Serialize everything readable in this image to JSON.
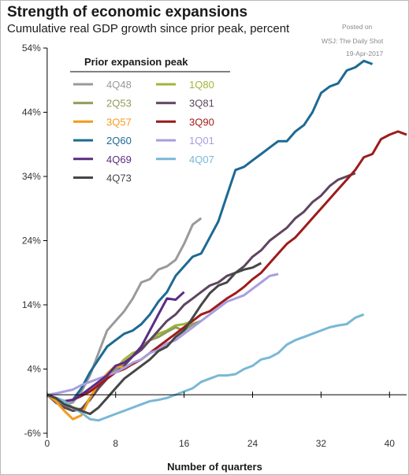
{
  "header": {
    "title": "Strength of economic expansions",
    "subtitle": "Cumulative real GDP growth since prior peak, percent"
  },
  "source": {
    "posted_label": "Posted on",
    "publisher": "WSJ: The Daily Shot",
    "date": "19-Apr-2017"
  },
  "chart_data": {
    "type": "line",
    "xlabel": "Number of quarters",
    "ylabel": "",
    "xlim": [
      -1,
      42
    ],
    "ylim": [
      -6,
      54
    ],
    "x_ticks": [
      0,
      8,
      16,
      24,
      32,
      40
    ],
    "y_ticks": [
      -6,
      4,
      14,
      24,
      34,
      44,
      54
    ],
    "y_tick_labels": [
      "-6%",
      "4%",
      "14%",
      "24%",
      "34%",
      "44%",
      "54%"
    ],
    "grid": false,
    "legend_title": "Prior expansion peak",
    "legend_position": "top-left",
    "series": [
      {
        "name": "4Q48",
        "color": "#9a9a9a",
        "x": [
          0,
          1,
          2,
          3,
          4,
          5,
          6,
          7,
          8,
          9,
          10,
          11,
          12,
          13,
          14,
          15,
          16,
          17,
          18
        ],
        "y": [
          0,
          -0.8,
          -1.5,
          -1.2,
          0.5,
          3,
          6.5,
          10,
          11.5,
          13,
          15,
          17.5,
          18,
          19.5,
          20,
          21,
          23.5,
          26.5,
          27.5
        ]
      },
      {
        "name": "1Q80",
        "color": "#9fb63a",
        "x": [
          0,
          1,
          2,
          3,
          4,
          5,
          6,
          7,
          8,
          9,
          10,
          11,
          12,
          13,
          14,
          15,
          16,
          17
        ],
        "y": [
          0,
          -0.5,
          -1,
          -2,
          -2.3,
          -0.5,
          1.5,
          3,
          4,
          5.5,
          6.5,
          7,
          8.5,
          9.5,
          10,
          10.8,
          11,
          11.5
        ]
      },
      {
        "name": "2Q53",
        "color": "#8e9c57",
        "x": [
          0,
          1,
          2,
          3,
          4,
          5,
          6,
          7,
          8,
          9,
          10,
          11,
          12,
          13,
          14,
          15,
          16,
          17,
          18
        ],
        "y": [
          0,
          -0.8,
          -1.8,
          -2.5,
          -2.3,
          -0.8,
          1,
          3,
          4,
          5,
          6,
          7.5,
          8.5,
          9,
          9.8,
          10.5,
          10,
          11,
          11.5
        ]
      },
      {
        "name": "3Q81",
        "color": "#5e4560",
        "x": [
          0,
          1,
          2,
          3,
          4,
          5,
          6,
          7,
          8,
          9,
          10,
          11,
          12,
          13,
          14,
          15,
          16,
          17,
          18,
          19,
          20,
          21,
          22,
          23,
          24,
          25,
          26,
          27,
          28,
          29,
          30,
          31,
          32,
          33,
          34,
          35,
          36
        ],
        "y": [
          0,
          -1.2,
          -2,
          -2.5,
          -2.2,
          -0.8,
          1,
          2.5,
          3.5,
          4.5,
          6,
          7,
          8.5,
          10,
          11.5,
          12.5,
          14,
          15,
          16,
          17,
          17.5,
          18.5,
          19,
          20,
          21.5,
          22.5,
          24,
          25,
          26,
          27.5,
          28.5,
          30,
          31,
          32.5,
          33.5,
          34,
          34.5
        ]
      },
      {
        "name": "3Q57",
        "color": "#f39b1f",
        "x": [
          0,
          1,
          2,
          3,
          4,
          5,
          6,
          7,
          8,
          9
        ],
        "y": [
          0,
          -1,
          -2.5,
          -3.8,
          -3.2,
          -0.5,
          1.8,
          3.3,
          4.5,
          4.2
        ]
      },
      {
        "name": "3Q90",
        "color": "#9e1b1b",
        "x": [
          0,
          1,
          2,
          3,
          4,
          5,
          6,
          7,
          8,
          9,
          10,
          11,
          12,
          13,
          14,
          15,
          16,
          17,
          18,
          19,
          20,
          21,
          22,
          23,
          24,
          25,
          26,
          27,
          28,
          29,
          30,
          31,
          32,
          33,
          34,
          35,
          36,
          37,
          38,
          39,
          40,
          41,
          42
        ],
        "y": [
          0,
          -0.5,
          -1,
          -0.8,
          -0.2,
          0.5,
          1.5,
          2.5,
          3.5,
          4,
          4.8,
          5.5,
          6.5,
          7.5,
          8.5,
          9.5,
          10.5,
          11.5,
          12.5,
          13,
          14,
          15,
          15.8,
          16.8,
          18,
          19,
          20.5,
          22,
          23.5,
          24.5,
          26,
          27.5,
          29,
          30.5,
          32,
          33.5,
          35,
          37,
          37.5,
          39.8,
          40.5,
          41,
          40.5
        ]
      },
      {
        "name": "2Q60",
        "color": "#1d6a93",
        "x": [
          0,
          1,
          2,
          3,
          4,
          5,
          6,
          7,
          8,
          9,
          10,
          11,
          12,
          13,
          14,
          15,
          16,
          17,
          18,
          19,
          20,
          21,
          22,
          23,
          24,
          25,
          26,
          27,
          28,
          29,
          30,
          31,
          32,
          33,
          34,
          35,
          36,
          37,
          38
        ],
        "y": [
          0,
          -0.5,
          -1,
          -0.8,
          1,
          3.5,
          5.5,
          7.5,
          8.5,
          9.5,
          10,
          11,
          12.5,
          14.5,
          16,
          18.5,
          20,
          21.5,
          22,
          24.5,
          27,
          31,
          35,
          35.5,
          36.5,
          37.5,
          38.5,
          39.5,
          39.5,
          41,
          42,
          44,
          47,
          48,
          48.5,
          50.5,
          51,
          52,
          51.5
        ]
      },
      {
        "name": "1Q01",
        "color": "#a89ee0",
        "x": [
          0,
          1,
          2,
          3,
          4,
          5,
          6,
          7,
          8,
          9,
          10,
          11,
          12,
          13,
          14,
          15,
          16,
          17,
          18,
          19,
          20,
          21,
          22,
          23,
          24,
          25,
          26,
          27
        ],
        "y": [
          0,
          0.2,
          0.5,
          0.8,
          1.5,
          2,
          2.5,
          3,
          3.5,
          4.2,
          5,
          5.5,
          6.5,
          7,
          8,
          8.5,
          9.5,
          10.5,
          11.5,
          12.5,
          13.5,
          14.5,
          15,
          15.5,
          16.5,
          17.5,
          18.5,
          18.8
        ]
      },
      {
        "name": "4Q69",
        "color": "#5b2c83",
        "x": [
          0,
          1,
          2,
          3,
          4,
          5,
          6,
          7,
          8,
          9,
          10,
          11,
          12,
          13,
          14,
          15,
          16
        ],
        "y": [
          0,
          -0.5,
          -1,
          -0.8,
          0,
          1,
          2,
          3,
          4.5,
          5,
          6,
          7.5,
          10,
          12.5,
          15,
          14.8,
          16
        ]
      },
      {
        "name": "4Q07",
        "color": "#78b8d6",
        "x": [
          0,
          1,
          2,
          3,
          4,
          5,
          6,
          7,
          8,
          9,
          10,
          11,
          12,
          13,
          14,
          15,
          16,
          17,
          18,
          19,
          20,
          21,
          22,
          23,
          24,
          25,
          26,
          27,
          28,
          29,
          30,
          31,
          32,
          33,
          34,
          35,
          36,
          37
        ],
        "y": [
          0,
          -0.5,
          -1,
          -2,
          -2.8,
          -3.8,
          -4,
          -3.5,
          -3,
          -2.5,
          -2,
          -1.5,
          -1,
          -0.8,
          -0.5,
          0,
          0.5,
          1,
          2,
          2.5,
          3,
          3,
          3.2,
          4,
          4.5,
          5.5,
          5.8,
          6.5,
          7.8,
          8.5,
          9,
          9.5,
          10,
          10.5,
          10.8,
          11,
          12,
          12.5
        ]
      },
      {
        "name": "4Q73",
        "color": "#464646",
        "x": [
          0,
          1,
          2,
          3,
          4,
          5,
          6,
          7,
          8,
          9,
          10,
          11,
          12,
          13,
          14,
          15,
          16,
          17,
          18,
          19,
          20,
          21,
          22,
          23,
          24,
          25
        ],
        "y": [
          0,
          -0.5,
          -1.5,
          -2,
          -2.5,
          -3,
          -2,
          -0.5,
          1,
          2.5,
          3.5,
          4.5,
          5.5,
          6.8,
          7.5,
          9,
          10,
          12,
          14,
          15.8,
          17,
          17.5,
          19,
          19.5,
          19.8,
          20.5
        ]
      }
    ]
  }
}
